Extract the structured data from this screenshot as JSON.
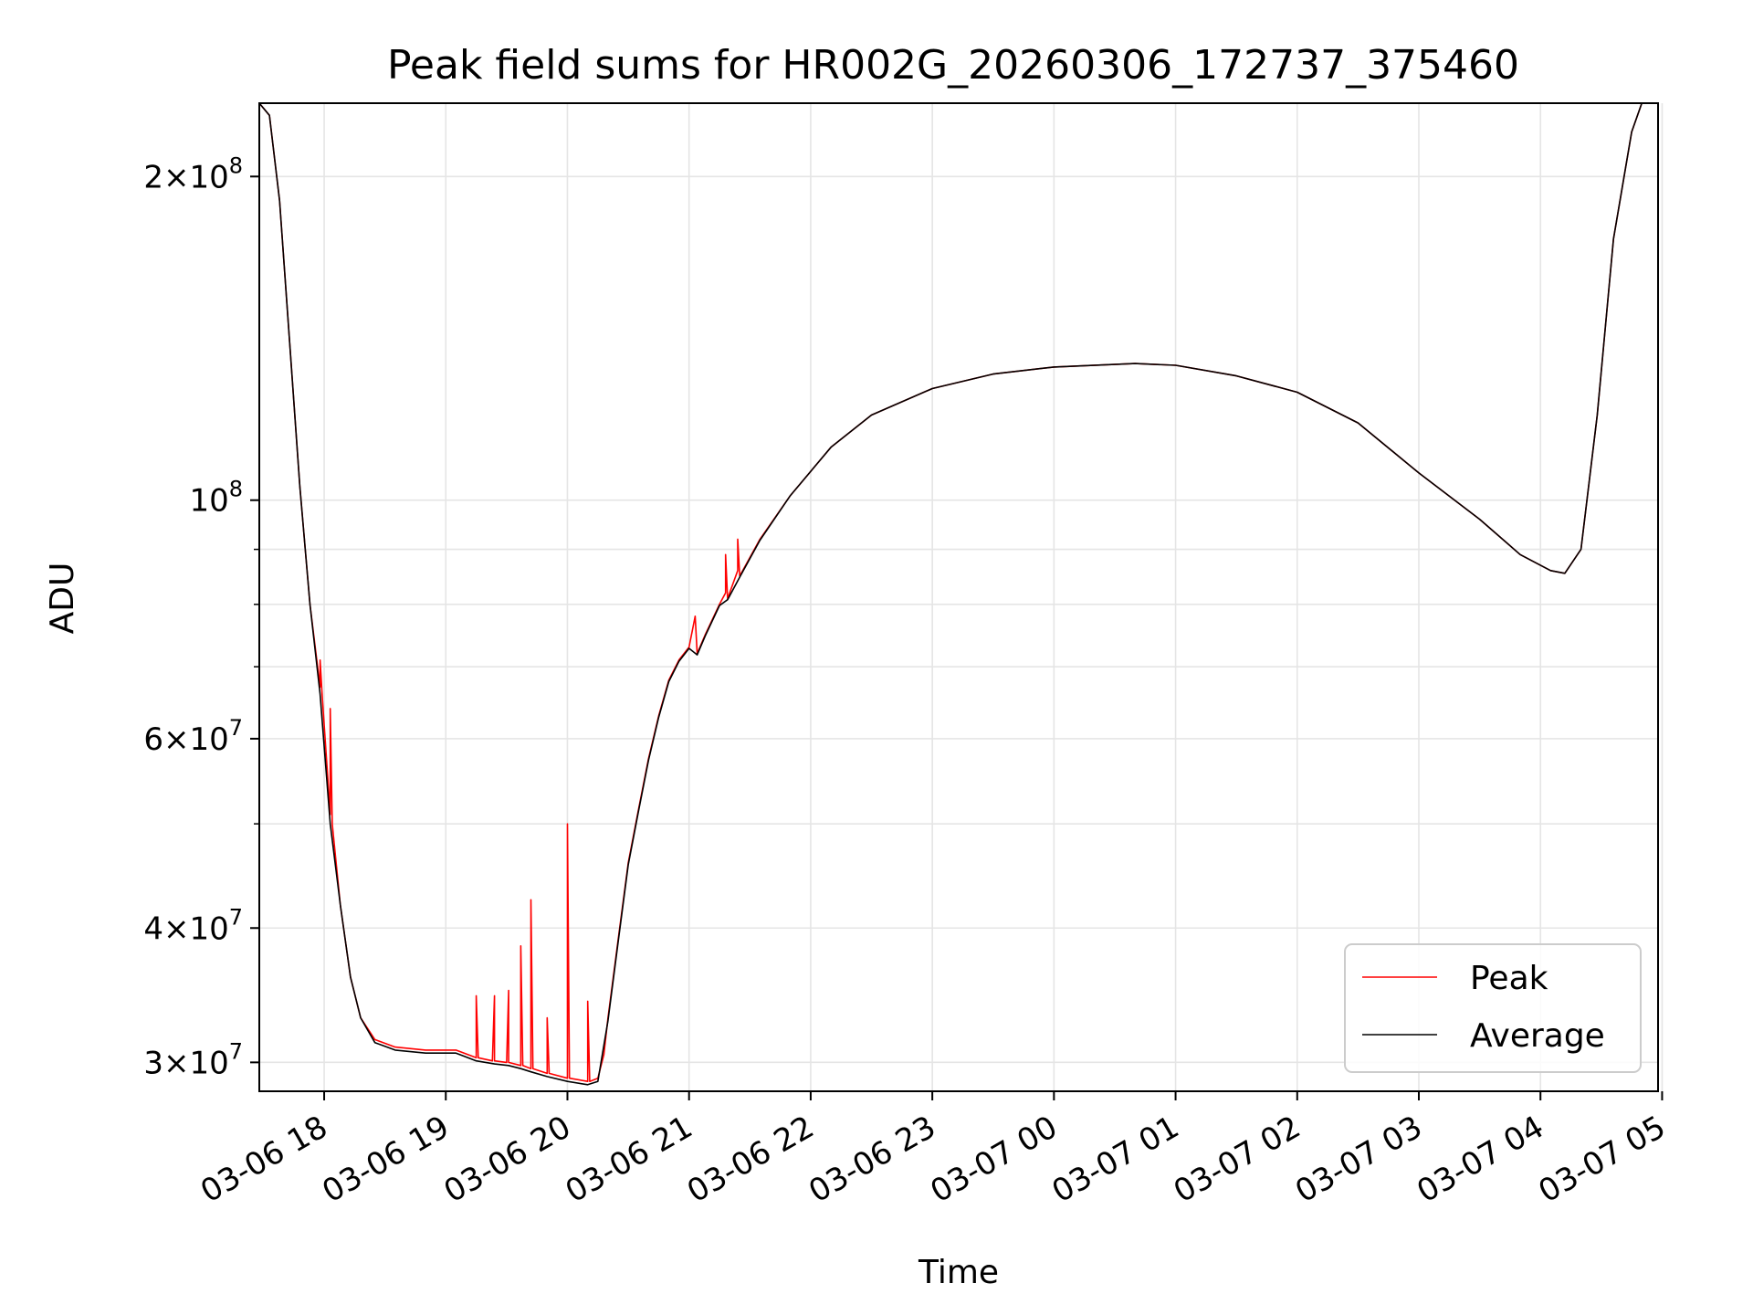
{
  "chart_data": {
    "type": "line",
    "title": "Peak field sums for HR002G_20260306_172737_375460",
    "xlabel": "Time",
    "ylabel": "ADU",
    "yscale": "log",
    "xlim": [
      "2026-03-06 17:28",
      "2026-03-07 04:58"
    ],
    "ylim": [
      28200000,
      234000000
    ],
    "grid": true,
    "legend_position": "lower-right",
    "x_ticks": [
      {
        "value": "2026-03-06 18:00",
        "label": "03-06 18"
      },
      {
        "value": "2026-03-06 19:00",
        "label": "03-06 19"
      },
      {
        "value": "2026-03-06 20:00",
        "label": "03-06 20"
      },
      {
        "value": "2026-03-06 21:00",
        "label": "03-06 21"
      },
      {
        "value": "2026-03-06 22:00",
        "label": "03-06 22"
      },
      {
        "value": "2026-03-06 23:00",
        "label": "03-06 23"
      },
      {
        "value": "2026-03-07 00:00",
        "label": "03-07 00"
      },
      {
        "value": "2026-03-07 01:00",
        "label": "03-07 01"
      },
      {
        "value": "2026-03-07 02:00",
        "label": "03-07 02"
      },
      {
        "value": "2026-03-07 03:00",
        "label": "03-07 03"
      },
      {
        "value": "2026-03-07 04:00",
        "label": "03-07 04"
      },
      {
        "value": "2026-03-07 05:00",
        "label": "03-07 05"
      }
    ],
    "y_major_ticks": [
      {
        "value": 30000000,
        "mantissa": "3",
        "exponent": "7"
      },
      {
        "value": 40000000,
        "mantissa": "4",
        "exponent": "7"
      },
      {
        "value": 60000000,
        "mantissa": "6",
        "exponent": "7"
      },
      {
        "value": 100000000,
        "mantissa": "",
        "exponent": "8"
      },
      {
        "value": 200000000,
        "mantissa": "2",
        "exponent": "8"
      }
    ],
    "y_minor_ticks": [
      50000000,
      70000000,
      80000000,
      90000000
    ],
    "series": [
      {
        "name": "Peak",
        "color": "#ff0000",
        "x": [
          "2026-03-06 17:28",
          "2026-03-06 17:33",
          "2026-03-06 17:38",
          "2026-03-06 17:43",
          "2026-03-06 17:48",
          "2026-03-06 17:53",
          "2026-03-06 17:58",
          "2026-03-06 17:58",
          "2026-03-06 17:59",
          "2026-03-06 18:03",
          "2026-03-06 18:03",
          "2026-03-06 18:04",
          "2026-03-06 18:08",
          "2026-03-06 18:13",
          "2026-03-06 18:18",
          "2026-03-06 18:25",
          "2026-03-06 18:35",
          "2026-03-06 18:50",
          "2026-03-06 19:05",
          "2026-03-06 19:15",
          "2026-03-06 19:15",
          "2026-03-06 19:16",
          "2026-03-06 19:23",
          "2026-03-06 19:24",
          "2026-03-06 19:24",
          "2026-03-06 19:30",
          "2026-03-06 19:31",
          "2026-03-06 19:31",
          "2026-03-06 19:37",
          "2026-03-06 19:37",
          "2026-03-06 19:38",
          "2026-03-06 19:42",
          "2026-03-06 19:42",
          "2026-03-06 19:43",
          "2026-03-06 19:50",
          "2026-03-06 19:50",
          "2026-03-06 19:51",
          "2026-03-06 20:00",
          "2026-03-06 20:00",
          "2026-03-06 20:01",
          "2026-03-06 20:10",
          "2026-03-06 20:10",
          "2026-03-06 20:11",
          "2026-03-06 20:15",
          "2026-03-06 20:18",
          "2026-03-06 20:20",
          "2026-03-06 20:25",
          "2026-03-06 20:30",
          "2026-03-06 20:35",
          "2026-03-06 20:40",
          "2026-03-06 20:45",
          "2026-03-06 20:50",
          "2026-03-06 20:55",
          "2026-03-06 21:00",
          "2026-03-06 21:03",
          "2026-03-06 21:04",
          "2026-03-06 21:08",
          "2026-03-06 21:15",
          "2026-03-06 21:18",
          "2026-03-06 21:18",
          "2026-03-06 21:19",
          "2026-03-06 21:24",
          "2026-03-06 21:24",
          "2026-03-06 21:25",
          "2026-03-06 21:35",
          "2026-03-06 21:50",
          "2026-03-06 22:10",
          "2026-03-06 22:30",
          "2026-03-06 23:00",
          "2026-03-06 23:30",
          "2026-03-07 00:00",
          "2026-03-07 00:40",
          "2026-03-07 01:00",
          "2026-03-07 01:30",
          "2026-03-07 02:00",
          "2026-03-07 02:30",
          "2026-03-07 03:00",
          "2026-03-07 03:30",
          "2026-03-07 03:50",
          "2026-03-07 04:05",
          "2026-03-07 04:12",
          "2026-03-07 04:20",
          "2026-03-07 04:28",
          "2026-03-07 04:36",
          "2026-03-07 04:45",
          "2026-03-07 04:50",
          "2026-03-07 04:58"
        ],
        "y": [
          234000000,
          228000000,
          190000000,
          140000000,
          103000000,
          80000000,
          67000000,
          71000000,
          66000000,
          51000000,
          64000000,
          50000000,
          42000000,
          36000000,
          33000000,
          31500000,
          31000000,
          30800000,
          30800000,
          30300000,
          34600000,
          30300000,
          30100000,
          34600000,
          30100000,
          30000000,
          35000000,
          30000000,
          29800000,
          38500000,
          29800000,
          29600000,
          42500000,
          29600000,
          29300000,
          33000000,
          29300000,
          29000000,
          50000000,
          29000000,
          28800000,
          34200000,
          28800000,
          29000000,
          30500000,
          33000000,
          39000000,
          46000000,
          51500000,
          57500000,
          63000000,
          68000000,
          71000000,
          73000000,
          78000000,
          72000000,
          75000000,
          80000000,
          82000000,
          89000000,
          81000000,
          86000000,
          92000000,
          85000000,
          92000000,
          101000000,
          112000000,
          120000000,
          127000000,
          131000000,
          133000000,
          134000000,
          133500000,
          130500000,
          126000000,
          118000000,
          106000000,
          96000000,
          89000000,
          86000000,
          85500000,
          90000000,
          120000000,
          175000000,
          220000000,
          234000000,
          234000000
        ]
      },
      {
        "name": "Average",
        "color": "#000000",
        "x": [
          "2026-03-06 17:28",
          "2026-03-06 17:33",
          "2026-03-06 17:38",
          "2026-03-06 17:43",
          "2026-03-06 17:48",
          "2026-03-06 17:53",
          "2026-03-06 17:58",
          "2026-03-06 18:03",
          "2026-03-06 18:08",
          "2026-03-06 18:13",
          "2026-03-06 18:18",
          "2026-03-06 18:25",
          "2026-03-06 18:35",
          "2026-03-06 18:50",
          "2026-03-06 19:05",
          "2026-03-06 19:15",
          "2026-03-06 19:24",
          "2026-03-06 19:31",
          "2026-03-06 19:37",
          "2026-03-06 19:42",
          "2026-03-06 19:50",
          "2026-03-06 20:00",
          "2026-03-06 20:10",
          "2026-03-06 20:15",
          "2026-03-06 20:20",
          "2026-03-06 20:25",
          "2026-03-06 20:30",
          "2026-03-06 20:35",
          "2026-03-06 20:40",
          "2026-03-06 20:45",
          "2026-03-06 20:50",
          "2026-03-06 20:55",
          "2026-03-06 21:00",
          "2026-03-06 21:04",
          "2026-03-06 21:08",
          "2026-03-06 21:15",
          "2026-03-06 21:19",
          "2026-03-06 21:25",
          "2026-03-06 21:35",
          "2026-03-06 21:50",
          "2026-03-06 22:10",
          "2026-03-06 22:30",
          "2026-03-06 23:00",
          "2026-03-06 23:30",
          "2026-03-07 00:00",
          "2026-03-07 00:40",
          "2026-03-07 01:00",
          "2026-03-07 01:30",
          "2026-03-07 02:00",
          "2026-03-07 02:30",
          "2026-03-07 03:00",
          "2026-03-07 03:30",
          "2026-03-07 03:50",
          "2026-03-07 04:05",
          "2026-03-07 04:12",
          "2026-03-07 04:20",
          "2026-03-07 04:28",
          "2026-03-07 04:36",
          "2026-03-07 04:45",
          "2026-03-07 04:50",
          "2026-03-07 04:58"
        ],
        "y": [
          234000000,
          228000000,
          190000000,
          140000000,
          103000000,
          80000000,
          66000000,
          50000000,
          42000000,
          36000000,
          33000000,
          31300000,
          30800000,
          30600000,
          30600000,
          30100000,
          29900000,
          29800000,
          29600000,
          29400000,
          29100000,
          28800000,
          28600000,
          28800000,
          32800000,
          38800000,
          45800000,
          51300000,
          57300000,
          62800000,
          67800000,
          70800000,
          72800000,
          71800000,
          74800000,
          79800000,
          80800000,
          84800000,
          91800000,
          101000000,
          112000000,
          120000000,
          127000000,
          131000000,
          133000000,
          134000000,
          133500000,
          130500000,
          126000000,
          118000000,
          106000000,
          96000000,
          89000000,
          86000000,
          85500000,
          90000000,
          120000000,
          175000000,
          220000000,
          234000000,
          234000000
        ]
      }
    ]
  }
}
